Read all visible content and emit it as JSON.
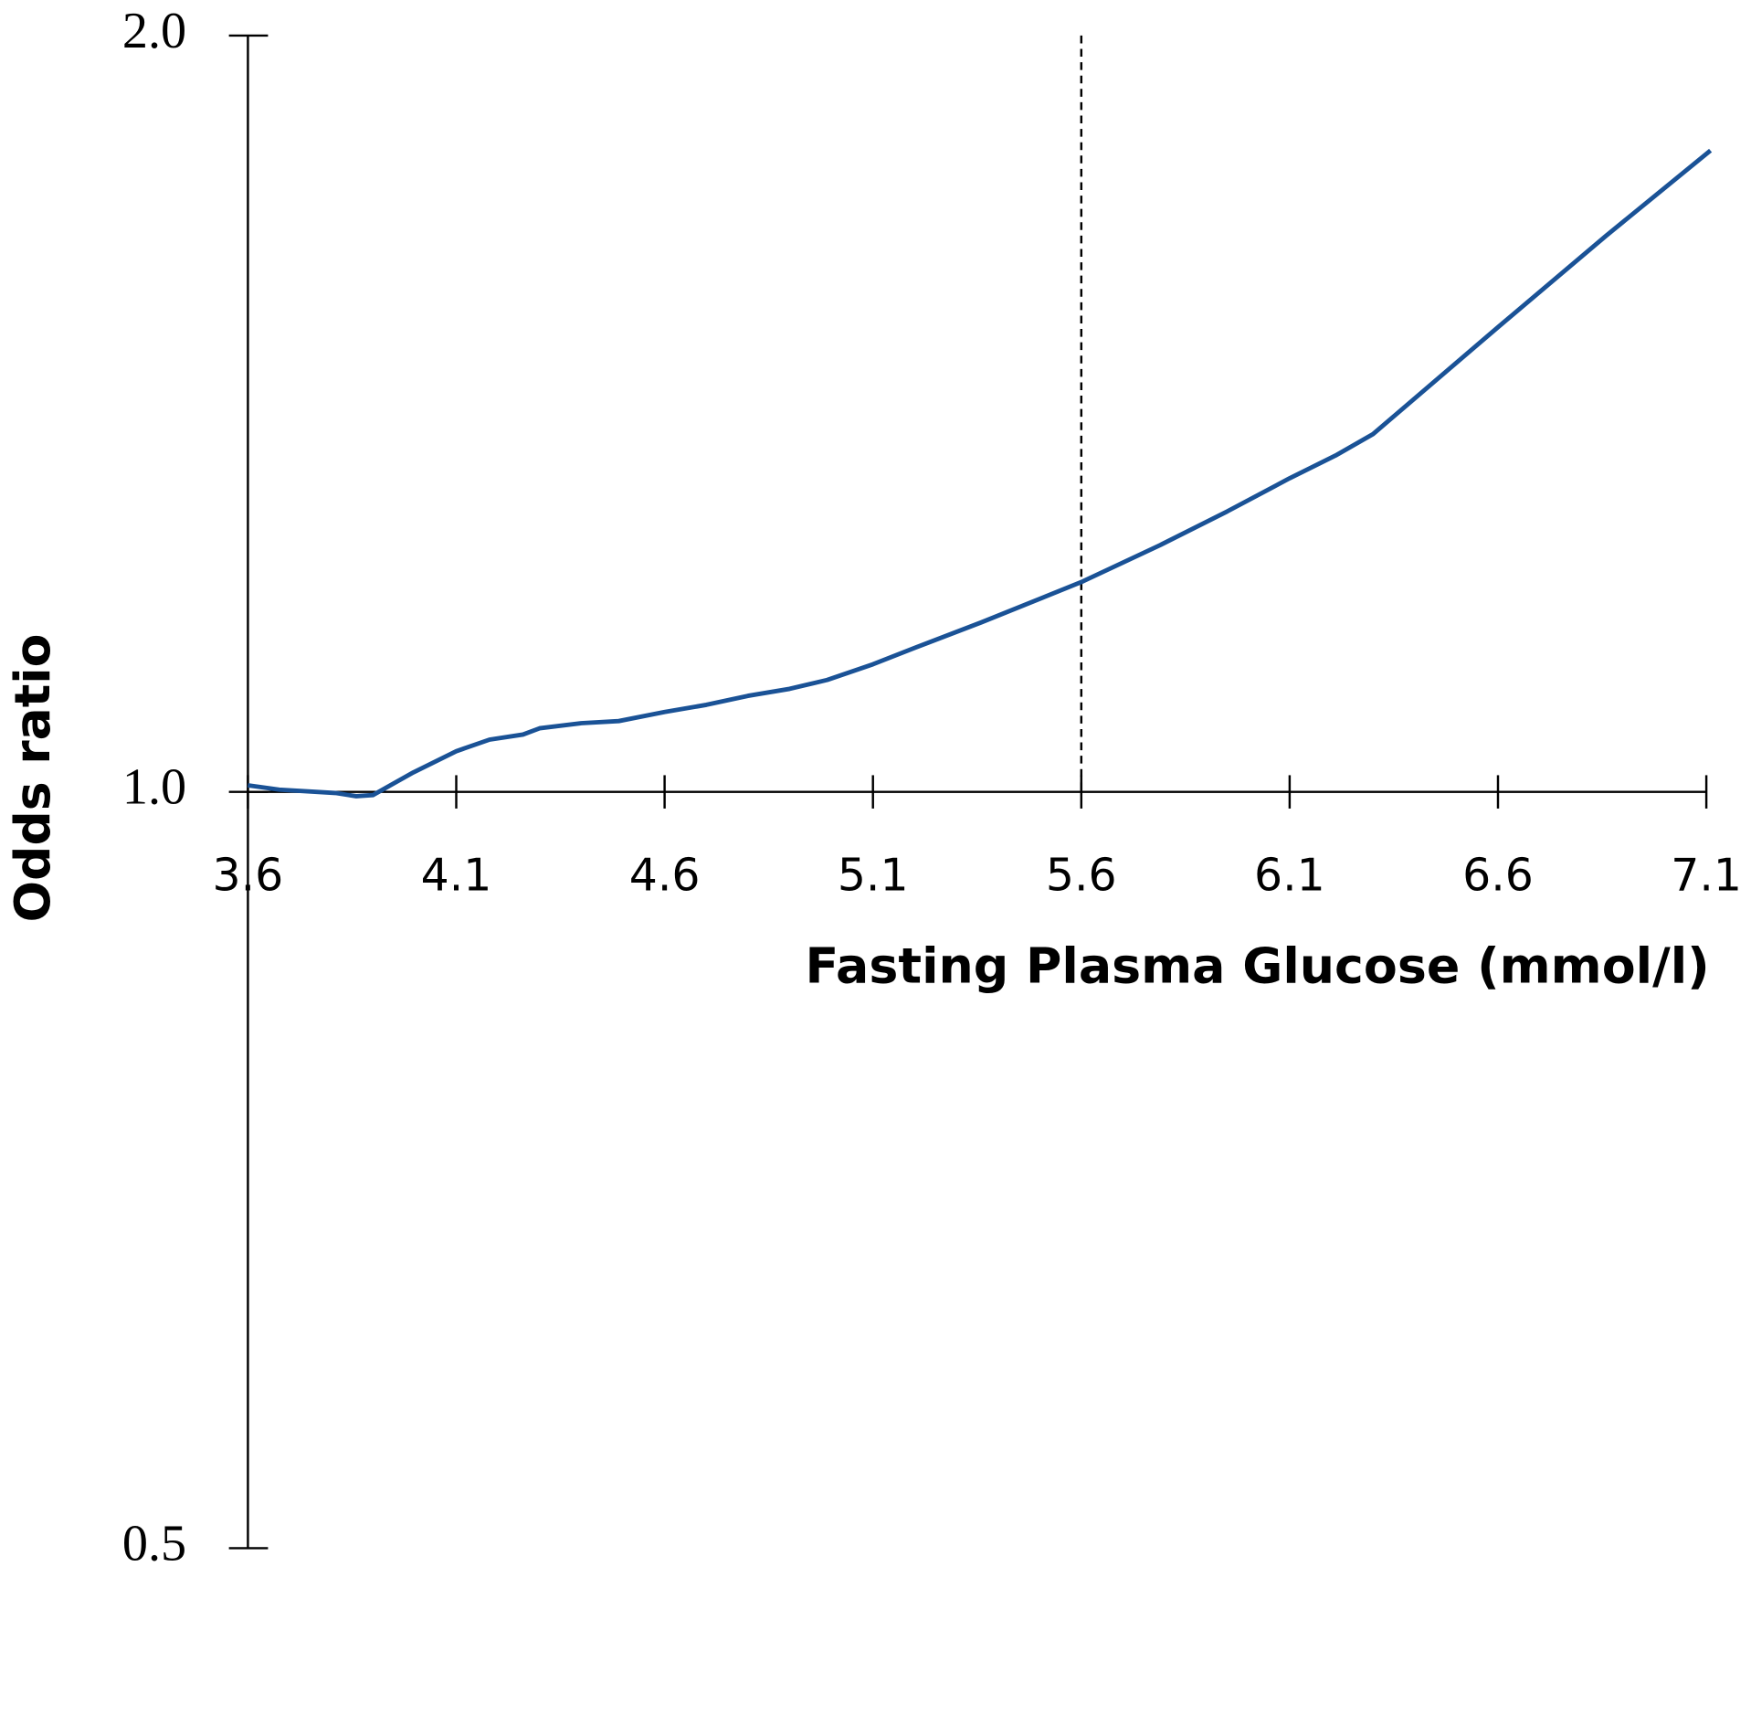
{
  "chart_data": {
    "type": "line",
    "x_label": "Fasting Plasma Glucose (mmol/l)",
    "y_label": "Odds ratio",
    "x": [
      3.6,
      3.675,
      3.81,
      3.86,
      3.9,
      3.997,
      4.1,
      4.18,
      4.26,
      4.3,
      4.4,
      4.49,
      4.6,
      4.7,
      4.8,
      4.9,
      4.99,
      5.1,
      5.2,
      5.36,
      5.6,
      5.79,
      5.95,
      6.1,
      6.21,
      6.3,
      6.6,
      6.86,
      7.11
    ],
    "values": [
      1.006,
      1.002,
      0.999,
      0.996,
      0.997,
      1.018,
      1.038,
      1.049,
      1.054,
      1.06,
      1.065,
      1.067,
      1.076,
      1.083,
      1.092,
      1.099,
      1.108,
      1.124,
      1.141,
      1.168,
      1.212,
      1.254,
      1.293,
      1.333,
      1.361,
      1.388,
      1.531,
      1.665,
      1.8
    ],
    "color": "#1a5296",
    "reference_x": 5.6,
    "xlim": [
      3.6,
      7.1
    ],
    "xticks": [
      3.6,
      4.1,
      4.6,
      5.1,
      5.6,
      6.1,
      6.6,
      7.1
    ],
    "ylim": [
      0.5,
      2
    ],
    "yticks": [
      0.5,
      {
        "value": 1,
        "label": "1.0"
      },
      {
        "value": 2,
        "label": "2.0"
      }
    ],
    "yscale": "log"
  }
}
